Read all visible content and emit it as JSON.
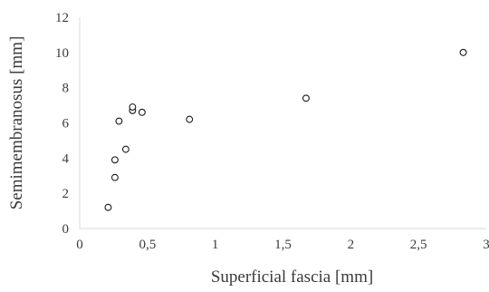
{
  "chart_data": {
    "type": "scatter",
    "xlabel": "Superficial fascia [mm]",
    "ylabel": "Semimembranosus [mm]",
    "xlim": [
      0,
      3
    ],
    "ylim": [
      0,
      12
    ],
    "x_ticks": [
      {
        "value": 0,
        "label": "0"
      },
      {
        "value": 0.5,
        "label": "0,5"
      },
      {
        "value": 1,
        "label": "1"
      },
      {
        "value": 1.5,
        "label": "1,5"
      },
      {
        "value": 2,
        "label": "2"
      },
      {
        "value": 2.5,
        "label": "2,5"
      },
      {
        "value": 3,
        "label": "3"
      }
    ],
    "y_ticks": [
      {
        "value": 0,
        "label": "0"
      },
      {
        "value": 2,
        "label": "2"
      },
      {
        "value": 4,
        "label": "4"
      },
      {
        "value": 6,
        "label": "6"
      },
      {
        "value": 8,
        "label": "8"
      },
      {
        "value": 10,
        "label": "10"
      },
      {
        "value": 12,
        "label": "12"
      }
    ],
    "grid": false,
    "marker": "open-circle",
    "series": [
      {
        "points": [
          {
            "x": 0.21,
            "y": 1.2
          },
          {
            "x": 0.26,
            "y": 2.9
          },
          {
            "x": 0.26,
            "y": 3.9
          },
          {
            "x": 0.29,
            "y": 6.1
          },
          {
            "x": 0.34,
            "y": 4.5
          },
          {
            "x": 0.39,
            "y": 6.7
          },
          {
            "x": 0.39,
            "y": 6.9
          },
          {
            "x": 0.46,
            "y": 6.6
          },
          {
            "x": 0.81,
            "y": 6.2
          },
          {
            "x": 1.67,
            "y": 7.4
          },
          {
            "x": 2.83,
            "y": 10.0
          }
        ]
      }
    ]
  }
}
